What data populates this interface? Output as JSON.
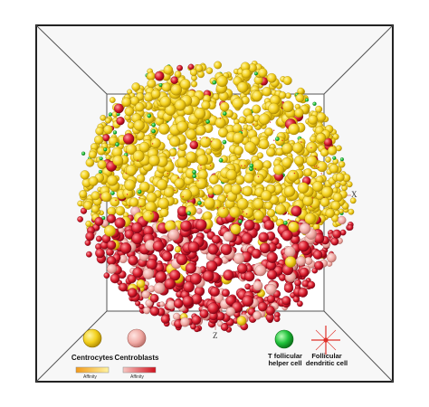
{
  "figure": {
    "axis_labels": {
      "x": "X",
      "z": "Z"
    },
    "legend": {
      "centrocytes": {
        "label": "Centrocytes",
        "color": "#f5d21e",
        "affinity_label": "Affinity"
      },
      "centroblasts": {
        "label": "Centroblasts",
        "color": "#f2b9b3",
        "affinity_label": "Affinity"
      },
      "tfh": {
        "label": "T follicular helper cell",
        "color": "#22c93c"
      },
      "fdc": {
        "label": "Follicular dendritic cell",
        "color": "#e0312a"
      }
    },
    "colors": {
      "yellow_cell": "#f3d01c",
      "red_cell": "#d81c2c",
      "green_cell": "#1fc13a",
      "box_line": "#222222",
      "box_face": "#f6f6f6"
    }
  }
}
